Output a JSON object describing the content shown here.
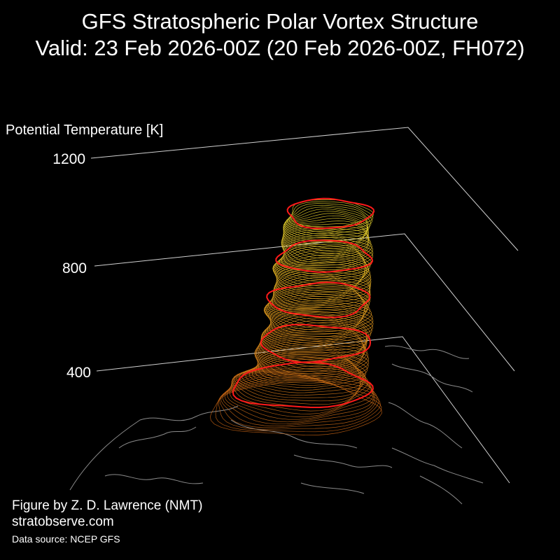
{
  "title": "GFS Stratospheric Polar Vortex Structure",
  "subtitle": "Valid: 23 Feb 2026-00Z  (20 Feb 2026-00Z, FH072)",
  "credits": {
    "author": "Figure by Z. D. Lawrence (NMT)",
    "site": "stratobserve.com",
    "source": "Data source: NCEP GFS"
  },
  "chart_data": {
    "type": "3d-surface",
    "zlabel": "Potential Temperature [K]",
    "z_ticks": [
      1200,
      800,
      400
    ],
    "z_range": [
      0,
      1200
    ],
    "grid": true,
    "colors": {
      "background": "#000000",
      "vortex_low": "#c86414",
      "vortex_mid": "#e8a020",
      "vortex_high": "#f0e030",
      "highlight_levels": "#ff1a1a",
      "coastlines": "#8a8a8a",
      "axes": "#d0d0d0"
    },
    "highlight_levels_count": 5
  }
}
